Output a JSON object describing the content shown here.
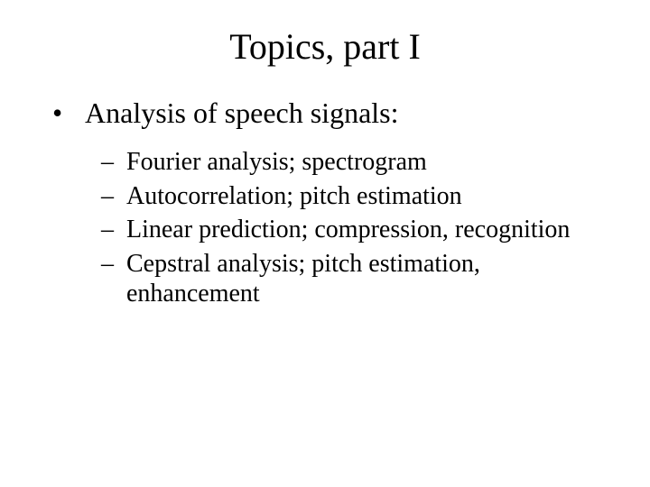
{
  "title": "Topics, part I",
  "l1_bullet": "•",
  "l2_bullet": "–",
  "level1": {
    "item0": "Analysis of speech signals:"
  },
  "level2": {
    "item0": "Fourier analysis; spectrogram",
    "item1": "Autocorrelation; pitch estimation",
    "item2": "Linear prediction; compression, recognition",
    "item3": "Cepstral analysis; pitch estimation, enhancement"
  },
  "colors": {
    "background": "#ffffff",
    "text": "#000000"
  },
  "fonts": {
    "family": "Times New Roman",
    "title_size_pt": 40,
    "l1_size_pt": 32,
    "l2_size_pt": 28
  }
}
